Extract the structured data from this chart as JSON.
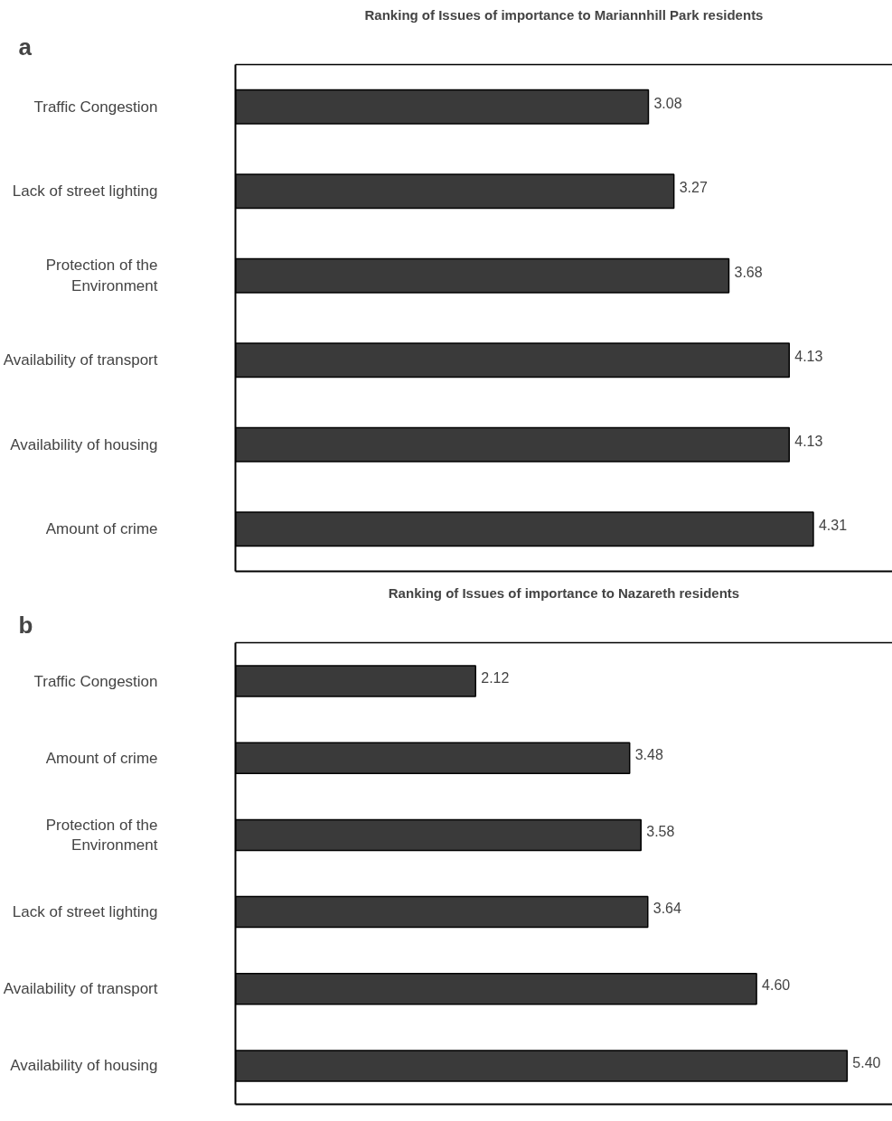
{
  "chart_data": [
    {
      "type": "bar",
      "orientation": "horizontal",
      "title": "Ranking of Issues of importance to Mariannhill Park residents",
      "annotations": [
        "a"
      ],
      "categories": [
        "Traffic Congestion",
        "Lack of street lighting",
        "Protection of the Environment",
        "Availability of transport",
        "Availability of housing",
        "Amount of crime"
      ],
      "series": [
        {
          "color": "#3a3a3a",
          "values": [
            3.08,
            3.27,
            3.68,
            4.13,
            4.13,
            4.31
          ],
          "value_labels": [
            "3.08",
            "3.27",
            "3.68",
            "4.13",
            "4.13",
            "4.31"
          ]
        }
      ],
      "xlim": [
        0,
        4.9
      ],
      "tick_labels": "y",
      "grid": false
    },
    {
      "type": "bar",
      "orientation": "horizontal",
      "title": "Ranking of Issues of importance to Nazareth residents",
      "annotations": [
        "b"
      ],
      "categories": [
        "Traffic Congestion",
        "Amount of crime",
        "Protection of the Environment",
        "Lack of street lighting",
        "Availability of transport",
        "Availability of housing"
      ],
      "series": [
        {
          "color": "#3a3a3a",
          "values": [
            2.12,
            3.48,
            3.58,
            3.64,
            4.6,
            5.4
          ],
          "value_labels": [
            "2.12",
            "3.48",
            "3.58",
            "3.64",
            "4.60",
            "5.40"
          ]
        }
      ],
      "xlim": [
        0,
        5.8
      ],
      "tick_labels": "y",
      "grid": false
    }
  ]
}
